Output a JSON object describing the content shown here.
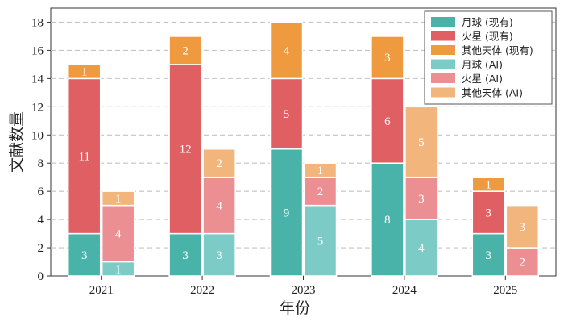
{
  "chart_data": {
    "type": "bar",
    "stacked": true,
    "xlabel": "年份",
    "ylabel": "文献数量",
    "ylim": [
      0,
      19
    ],
    "yticks": [
      0,
      2,
      4,
      6,
      8,
      10,
      12,
      14,
      16,
      18
    ],
    "grid": "horizontal dashed",
    "legend_position": "top-right",
    "categories": [
      "2021",
      "2022",
      "2023",
      "2024",
      "2025"
    ],
    "groups": [
      {
        "name": "现有",
        "series": [
          {
            "name": "月球 (现有)",
            "color": "#4ab3a9",
            "values": [
              3,
              3,
              9,
              8,
              3
            ]
          },
          {
            "name": "火星 (现有)",
            "color": "#e05f63",
            "values": [
              11,
              12,
              5,
              6,
              3
            ]
          },
          {
            "name": "其他天体 (现有)",
            "color": "#ef9a3e",
            "values": [
              1,
              2,
              4,
              3,
              1
            ]
          }
        ]
      },
      {
        "name": "AI",
        "series": [
          {
            "name": "月球 (AI)",
            "color": "#7dcbc6",
            "values": [
              1,
              3,
              5,
              4,
              0
            ]
          },
          {
            "name": "火星 (AI)",
            "color": "#eb8f93",
            "values": [
              4,
              4,
              2,
              3,
              2
            ]
          },
          {
            "name": "其他天体 (AI)",
            "color": "#f2b67c",
            "values": [
              1,
              2,
              1,
              5,
              3
            ]
          }
        ]
      }
    ]
  }
}
